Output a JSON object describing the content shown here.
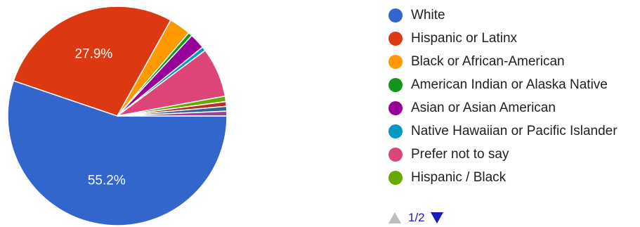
{
  "chart_data": {
    "type": "pie",
    "title": "",
    "slices": [
      {
        "label": "White",
        "value": 55.2,
        "color": "#3366cc",
        "display": "55.2%"
      },
      {
        "label": "Hispanic or Latinx",
        "value": 27.9,
        "color": "#dc3912",
        "display": "27.9%"
      },
      {
        "label": "Black or African-American",
        "value": 3.2,
        "color": "#ff9900",
        "display": ""
      },
      {
        "label": "American Indian or Alaska Native",
        "value": 0.6,
        "color": "#109618",
        "display": ""
      },
      {
        "label": "Asian or Asian American",
        "value": 2.3,
        "color": "#990099",
        "display": ""
      },
      {
        "label": "Native Hawaiian or Pacific Islander",
        "value": 0.6,
        "color": "#0099c6",
        "display": ""
      },
      {
        "label": "Prefer not to say",
        "value": 7.3,
        "color": "#dd4477",
        "display": ""
      },
      {
        "label": "Hispanic / Black",
        "value": 0.8,
        "color": "#66aa00",
        "display": ""
      },
      {
        "label": "",
        "value": 0.7,
        "color": "#b82e2e",
        "display": ""
      },
      {
        "label": "",
        "value": 0.7,
        "color": "#316395",
        "display": ""
      },
      {
        "label": "",
        "value": 0.7,
        "color": "#994499",
        "display": ""
      }
    ]
  },
  "legend": {
    "items": [
      {
        "label": "White",
        "color": "#3366cc"
      },
      {
        "label": "Hispanic or Latinx",
        "color": "#dc3912"
      },
      {
        "label": "Black or African-American",
        "color": "#ff9900"
      },
      {
        "label": "American Indian or Alaska Native",
        "color": "#109618"
      },
      {
        "label": "Asian or Asian American",
        "color": "#990099"
      },
      {
        "label": "Native Hawaiian or Pacific Islander",
        "color": "#0099c6"
      },
      {
        "label": "Prefer not to say",
        "color": "#dd4477"
      },
      {
        "label": "Hispanic / Black",
        "color": "#66aa00"
      }
    ]
  },
  "pager": {
    "text": "1/2",
    "prev_icon": "triangle-up-icon",
    "next_icon": "triangle-down-icon"
  }
}
